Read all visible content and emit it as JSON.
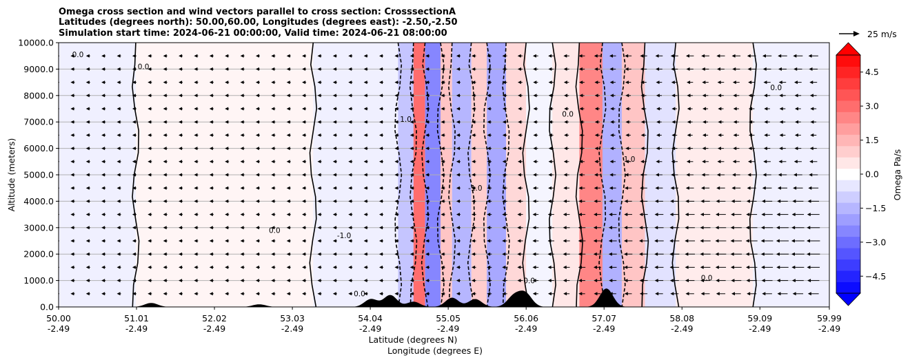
{
  "chart_data": {
    "type": "contour",
    "title_lines": [
      "Omega cross section and wind vectors parallel to cross section: CrosssectionA",
      "Latitudes (degrees north): 50.00,60.00, Longitudes (degrees east): -2.50,-2.50",
      "Simulation start time: 2024-06-21 00:00:00, Valid time: 2024-06-21 08:00:00"
    ],
    "ylabel": "Altitude (meters)",
    "xlabel_lines": [
      "Latitude (degrees N)",
      "Longitude (degrees E)"
    ],
    "ylim": [
      0,
      10000
    ],
    "y_ticks": [
      0,
      1000,
      2000,
      3000,
      4000,
      5000,
      6000,
      7000,
      8000,
      9000,
      10000
    ],
    "y_tick_labels": [
      "0.0",
      "1000.0",
      "2000.0",
      "3000.0",
      "4000.0",
      "5000.0",
      "6000.0",
      "7000.0",
      "8000.0",
      "9000.0",
      "10000.0"
    ],
    "xlim": [
      50.0,
      59.99
    ],
    "x_ticks": [
      50.0,
      51.01,
      52.02,
      53.03,
      54.04,
      55.05,
      56.06,
      57.07,
      58.08,
      59.09,
      59.99
    ],
    "x_tick_lat_labels": [
      "50.00",
      "51.01",
      "52.02",
      "53.03",
      "54.04",
      "55.05",
      "56.06",
      "57.07",
      "58.08",
      "59.09",
      "59.99"
    ],
    "x_tick_lon_labels": [
      "-2.49",
      "-2.49",
      "-2.49",
      "-2.49",
      "-2.49",
      "-2.49",
      "-2.49",
      "-2.49",
      "-2.49",
      "-2.49",
      "-2.49"
    ],
    "grid_y": true,
    "colorbar": {
      "label": "Omega Pa/s",
      "range": [
        -5.25,
        5.25
      ],
      "ticks": [
        -4.5,
        -3.0,
        -1.5,
        0.0,
        1.5,
        3.0,
        4.5
      ],
      "tick_labels": [
        "−4.5",
        "−3.0",
        "−1.5",
        "0.0",
        "1.5",
        "3.0",
        "4.5"
      ],
      "extend": "both",
      "negative_color": "#0000ff",
      "positive_color": "#ff0000"
    },
    "quiver_key": {
      "label": "25 m/s",
      "value": 25
    },
    "contour_labels": [
      "0.0",
      "-1.0",
      "1.0"
    ],
    "omega_bands": [
      {
        "lat": [
          50.0,
          51.0
        ],
        "value": -0.3
      },
      {
        "lat": [
          51.0,
          53.3
        ],
        "value": 0.2
      },
      {
        "lat": [
          53.3,
          54.4
        ],
        "value": -0.3
      },
      {
        "lat": [
          54.4,
          54.6
        ],
        "value": -1.2
      },
      {
        "lat": [
          54.6,
          54.75
        ],
        "value": 3.0
      },
      {
        "lat": [
          54.75,
          54.95
        ],
        "value": -2.5
      },
      {
        "lat": [
          54.95,
          55.1
        ],
        "value": 1.2
      },
      {
        "lat": [
          55.1,
          55.35
        ],
        "value": -1.5
      },
      {
        "lat": [
          55.35,
          55.55
        ],
        "value": 1.0
      },
      {
        "lat": [
          55.55,
          55.8
        ],
        "value": -1.8
      },
      {
        "lat": [
          55.8,
          56.06
        ],
        "value": 0.8
      },
      {
        "lat": [
          56.06,
          56.4
        ],
        "value": -0.2
      },
      {
        "lat": [
          56.4,
          56.75
        ],
        "value": 0.5
      },
      {
        "lat": [
          56.75,
          57.05
        ],
        "value": 2.5
      },
      {
        "lat": [
          57.05,
          57.3
        ],
        "value": -1.6
      },
      {
        "lat": [
          57.3,
          57.6
        ],
        "value": 1.2
      },
      {
        "lat": [
          57.6,
          58.0
        ],
        "value": -0.6
      },
      {
        "lat": [
          58.0,
          59.0
        ],
        "value": 0.4
      },
      {
        "lat": [
          59.0,
          59.99
        ],
        "value": -0.3
      }
    ],
    "terrain_peaks": [
      {
        "lat": 51.2,
        "height": 150
      },
      {
        "lat": 52.6,
        "height": 100
      },
      {
        "lat": 54.05,
        "height": 300
      },
      {
        "lat": 54.3,
        "height": 450
      },
      {
        "lat": 54.6,
        "height": 200
      },
      {
        "lat": 55.1,
        "height": 350
      },
      {
        "lat": 55.4,
        "height": 300
      },
      {
        "lat": 55.9,
        "height": 400
      },
      {
        "lat": 56.05,
        "height": 500
      },
      {
        "lat": 57.1,
        "height": 700
      }
    ]
  }
}
